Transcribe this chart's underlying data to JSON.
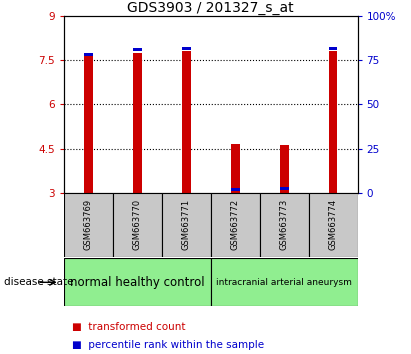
{
  "title": "GDS3903 / 201327_s_at",
  "samples": [
    "GSM663769",
    "GSM663770",
    "GSM663771",
    "GSM663772",
    "GSM663773",
    "GSM663774"
  ],
  "red_values": [
    7.7,
    7.75,
    7.82,
    4.65,
    4.62,
    7.8
  ],
  "blue_values": [
    7.63,
    7.82,
    7.86,
    3.08,
    3.11,
    7.86
  ],
  "y_min": 3,
  "y_max": 9,
  "y_ticks": [
    3,
    4.5,
    6,
    7.5,
    9
  ],
  "y_tick_labels": [
    "3",
    "4.5",
    "6",
    "7.5",
    "9"
  ],
  "y2_ticks": [
    0,
    25,
    50,
    75,
    100
  ],
  "y2_tick_labels": [
    "0",
    "25",
    "50",
    "75",
    "100%"
  ],
  "groups": [
    {
      "label": "normal healthy control",
      "color": "#90EE90"
    },
    {
      "label": "intracranial arterial aneurysm",
      "color": "#90EE90"
    }
  ],
  "bar_width": 0.18,
  "red_color": "#CC0000",
  "blue_color": "#0000CC",
  "title_fontsize": 10,
  "tick_fontsize": 7.5,
  "xticklabel_bg": "#C8C8C8",
  "disease_state_label": "disease state",
  "legend_red_label": "transformed count",
  "legend_blue_label": "percentile rank within the sample"
}
